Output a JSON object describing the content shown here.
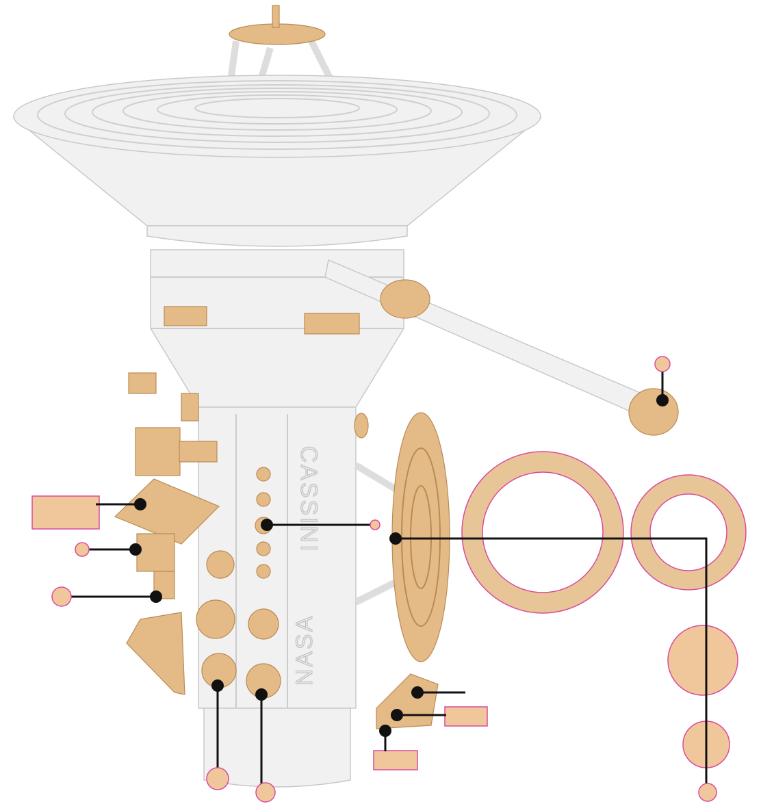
{
  "body_labels": {
    "nasa": "NASA",
    "cassini": "CASSINI"
  }
}
